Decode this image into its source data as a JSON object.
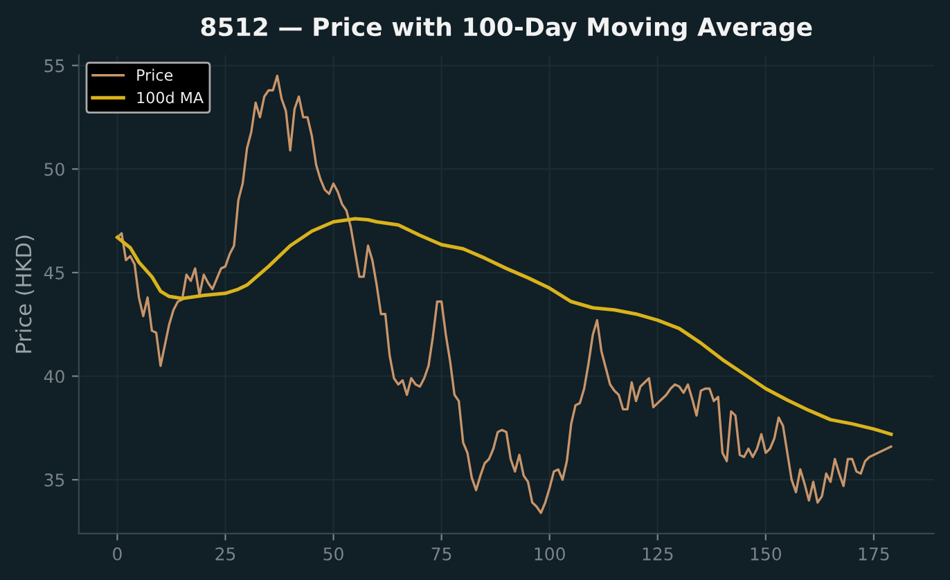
{
  "chart_data": {
    "type": "line",
    "title": "8512 — Price with 100-Day Moving Average",
    "ylabel": "Price (HKD)",
    "xlim": [
      -8.9,
      188.9
    ],
    "ylim": [
      32.4,
      55.5
    ],
    "xticks": [
      0,
      25,
      50,
      75,
      100,
      125,
      150,
      175
    ],
    "yticks": [
      35,
      40,
      45,
      50,
      55
    ],
    "grid": true,
    "legend": "top left",
    "series": [
      {
        "name": "Price",
        "color": "#c8956a",
        "x": [
          0,
          1,
          2,
          3,
          4,
          5,
          6,
          7,
          8,
          9,
          10,
          11,
          12,
          13,
          14,
          15,
          16,
          17,
          18,
          19,
          20,
          21,
          22,
          23,
          24,
          25,
          26,
          27,
          28,
          29,
          30,
          31,
          32,
          33,
          34,
          35,
          36,
          37,
          38,
          39,
          40,
          41,
          42,
          43,
          44,
          45,
          46,
          47,
          48,
          49,
          50,
          51,
          52,
          53,
          54,
          55,
          56,
          57,
          58,
          59,
          60,
          61,
          62,
          63,
          64,
          65,
          66,
          67,
          68,
          69,
          70,
          71,
          72,
          73,
          74,
          75,
          76,
          77,
          78,
          79,
          80,
          81,
          82,
          83,
          84,
          85,
          86,
          87,
          88,
          89,
          90,
          91,
          92,
          93,
          94,
          95,
          96,
          97,
          98,
          99,
          100,
          101,
          102,
          103,
          104,
          105,
          106,
          107,
          108,
          109,
          110,
          111,
          112,
          113,
          114,
          115,
          116,
          117,
          118,
          119,
          120,
          121,
          122,
          123,
          124,
          125,
          126,
          127,
          128,
          129,
          130,
          131,
          132,
          133,
          134,
          135,
          136,
          137,
          138,
          139,
          140,
          141,
          142,
          143,
          144,
          145,
          146,
          147,
          148,
          149,
          150,
          151,
          152,
          153,
          154,
          155,
          156,
          157,
          158,
          159,
          160,
          161,
          162,
          163,
          164,
          165,
          166,
          167,
          168,
          169,
          170,
          171,
          172,
          173,
          174,
          175,
          176,
          177,
          178,
          179
        ],
        "values": [
          46.7,
          46.9,
          45.6,
          45.8,
          45.4,
          43.8,
          42.9,
          43.8,
          42.2,
          42.1,
          40.5,
          41.5,
          42.5,
          43.2,
          43.6,
          43.7,
          44.9,
          44.6,
          45.2,
          43.9,
          44.9,
          44.5,
          44.2,
          44.7,
          45.2,
          45.3,
          45.9,
          46.3,
          48.5,
          49.3,
          51.0,
          51.8,
          53.2,
          52.5,
          53.5,
          53.8,
          53.8,
          54.5,
          53.4,
          52.8,
          50.9,
          52.9,
          53.5,
          52.5,
          52.5,
          51.6,
          50.2,
          49.5,
          49.0,
          48.8,
          49.3,
          48.9,
          48.3,
          48.0,
          47.2,
          46.0,
          44.8,
          44.8,
          46.3,
          45.6,
          44.4,
          43.0,
          43.0,
          41.0,
          39.9,
          39.6,
          39.8,
          39.1,
          39.9,
          39.6,
          39.5,
          39.9,
          40.5,
          41.9,
          43.6,
          43.6,
          42.0,
          40.7,
          39.1,
          38.8,
          36.8,
          36.3,
          35.1,
          34.5,
          35.2,
          35.8,
          36.0,
          36.5,
          37.3,
          37.4,
          37.3,
          36.0,
          35.4,
          36.2,
          35.2,
          34.9,
          33.9,
          33.7,
          33.4,
          33.9,
          34.6,
          35.4,
          35.5,
          35.0,
          35.9,
          37.7,
          38.6,
          38.7,
          39.4,
          40.6,
          42.0,
          42.7,
          41.2,
          40.4,
          39.6,
          39.3,
          39.1,
          38.4,
          38.4,
          39.7,
          38.8,
          39.5,
          39.7,
          39.9,
          38.5,
          38.7,
          38.9,
          39.1,
          39.4,
          39.6,
          39.5,
          39.2,
          39.6,
          38.9,
          38.1,
          39.3,
          39.4,
          39.4,
          38.8,
          39.0,
          36.3,
          35.9,
          38.3,
          38.1,
          36.2,
          36.1,
          36.5,
          36.1,
          36.5,
          37.2,
          36.3,
          36.5,
          37.0,
          38.0,
          37.6,
          36.3,
          35.0,
          34.4,
          35.5,
          34.8,
          34.0,
          34.9,
          33.9,
          34.2,
          35.3,
          34.9,
          36.0,
          35.3,
          34.7,
          36.0,
          36.0,
          35.4,
          35.3,
          35.9,
          36.1,
          36.2,
          36.3,
          36.4,
          36.5,
          36.6
        ]
      },
      {
        "name": "100d MA",
        "color": "#d9b31c",
        "x": [
          0,
          3,
          5,
          8,
          10,
          12,
          15,
          20,
          25,
          28,
          30,
          35,
          40,
          45,
          50,
          55,
          58,
          60,
          65,
          70,
          75,
          80,
          85,
          90,
          95,
          100,
          105,
          110,
          115,
          120,
          125,
          130,
          135,
          140,
          145,
          150,
          155,
          160,
          165,
          170,
          175,
          179
        ],
        "values": [
          46.7,
          46.2,
          45.5,
          44.8,
          44.1,
          43.85,
          43.75,
          43.9,
          44.0,
          44.2,
          44.4,
          45.3,
          46.3,
          47.0,
          47.45,
          47.6,
          47.55,
          47.45,
          47.3,
          46.8,
          46.35,
          46.15,
          45.7,
          45.2,
          44.75,
          44.25,
          43.6,
          43.3,
          43.2,
          43.0,
          42.7,
          42.3,
          41.6,
          40.8,
          40.1,
          39.4,
          38.85,
          38.35,
          37.9,
          37.7,
          37.45,
          37.2
        ]
      }
    ]
  }
}
